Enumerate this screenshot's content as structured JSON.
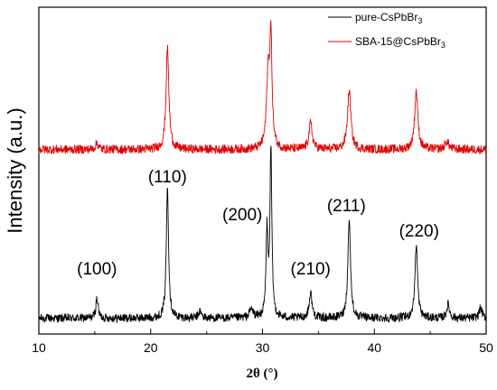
{
  "chart_data": {
    "type": "line",
    "xlabel": "2θ (°)",
    "ylabel": "Intensity (a.u.)",
    "xlim": [
      10,
      50
    ],
    "xticks": [
      "10",
      "20",
      "30",
      "40",
      "50"
    ],
    "yticks_shown": false,
    "grid": false,
    "legend_position": "top-right",
    "series": [
      {
        "name": "pure-CsPbBr3",
        "color": "#000000",
        "baseline": 0.05,
        "noise": 0.025,
        "peaks": [
          {
            "x": 15.2,
            "height": 0.12,
            "width": 0.12
          },
          {
            "x": 21.5,
            "height": 0.77,
            "width": 0.12
          },
          {
            "x": 24.4,
            "height": 0.04,
            "width": 0.15
          },
          {
            "x": 29.0,
            "height": 0.05,
            "width": 0.2
          },
          {
            "x": 30.4,
            "height": 0.5,
            "width": 0.1
          },
          {
            "x": 30.75,
            "height": 0.98,
            "width": 0.1
          },
          {
            "x": 34.3,
            "height": 0.15,
            "width": 0.15
          },
          {
            "x": 37.75,
            "height": 0.58,
            "width": 0.14
          },
          {
            "x": 43.75,
            "height": 0.43,
            "width": 0.14
          },
          {
            "x": 46.6,
            "height": 0.08,
            "width": 0.15
          },
          {
            "x": 49.5,
            "height": 0.06,
            "width": 0.15
          }
        ]
      },
      {
        "name": "SBA-15@CsPbBr3",
        "color": "#e00000",
        "baseline": 0.1,
        "noise": 0.035,
        "peaks": [
          {
            "x": 15.2,
            "height": 0.05,
            "width": 0.15
          },
          {
            "x": 21.5,
            "height": 0.78,
            "width": 0.15
          },
          {
            "x": 30.5,
            "height": 0.55,
            "width": 0.17
          },
          {
            "x": 30.75,
            "height": 0.8,
            "width": 0.12
          },
          {
            "x": 34.3,
            "height": 0.2,
            "width": 0.18
          },
          {
            "x": 37.75,
            "height": 0.45,
            "width": 0.18
          },
          {
            "x": 43.75,
            "height": 0.45,
            "width": 0.17
          },
          {
            "x": 46.5,
            "height": 0.06,
            "width": 0.2
          }
        ]
      }
    ],
    "annotations": [
      {
        "text": "(100)",
        "x": 15.2
      },
      {
        "text": "(110)",
        "x": 21.5
      },
      {
        "text": "(200)",
        "x": 28.2
      },
      {
        "text": "(210)",
        "x": 34.3
      },
      {
        "text": "(211)",
        "x": 37.5
      },
      {
        "text": "(220)",
        "x": 44.0
      }
    ],
    "legend": [
      {
        "label": "pure-CsPbBr",
        "sub": "3",
        "color": "#000000"
      },
      {
        "label": "SBA-15@CsPbBr",
        "sub": "3",
        "color": "#e00000"
      }
    ]
  }
}
